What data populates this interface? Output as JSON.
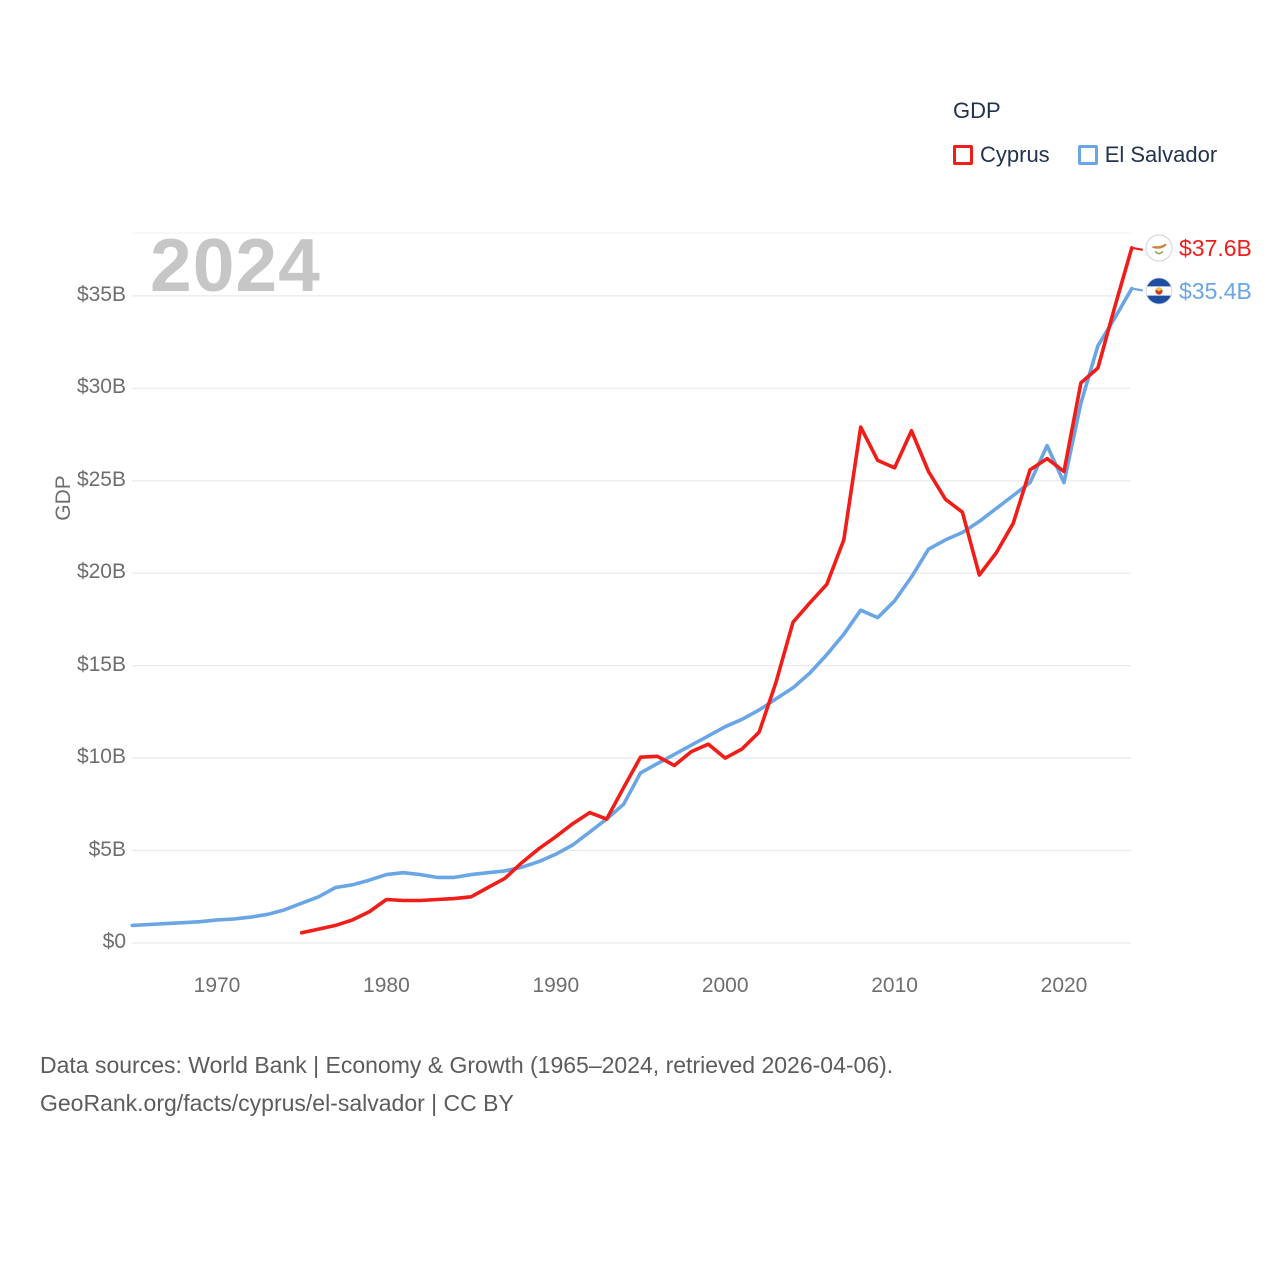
{
  "watermark": "2024",
  "legend": {
    "title": "GDP",
    "items": [
      {
        "label": "Cyprus",
        "color": "#f01d18"
      },
      {
        "label": "El Salvador",
        "color": "#6aa5e6"
      }
    ]
  },
  "end_labels": [
    {
      "series": "Cyprus",
      "value": "$37.6B",
      "color": "#f01d18",
      "flag": "cyprus-flag"
    },
    {
      "series": "El Salvador",
      "value": "$35.4B",
      "color": "#6aa5e6",
      "flag": "el-salvador-flag"
    }
  ],
  "footer": {
    "line1": "Data sources: World Bank | Economy & Growth (1965–2024, retrieved 2026-04-06).",
    "line2": "GeoRank.org/facts/cyprus/el-salvador | CC BY"
  },
  "chart_data": {
    "type": "line",
    "title": "GDP",
    "ylabel": "GDP",
    "xlim": [
      1965,
      2024.3
    ],
    "ylim": [
      0,
      38.5
    ],
    "grid": true,
    "legend_position": "top-right",
    "x_ticks": [
      1970,
      1980,
      1990,
      2000,
      2010,
      2020
    ],
    "y_ticks": [
      "$0",
      "$5B",
      "$10B",
      "$15B",
      "$20B",
      "$25B",
      "$30B",
      "$35B"
    ],
    "y_tick_values": [
      0,
      5,
      10,
      15,
      20,
      25,
      30,
      35
    ],
    "units": "billions USD",
    "series": [
      {
        "name": "Cyprus",
        "color": "#f01d18",
        "start_year": 1975,
        "end_value_label": "$37.6B",
        "values": [
          0.55,
          0.75,
          0.95,
          1.25,
          1.7,
          2.35,
          2.3,
          2.3,
          2.35,
          2.4,
          2.5,
          3.0,
          3.5,
          4.35,
          5.1,
          5.75,
          6.45,
          7.05,
          6.7,
          8.4,
          10.05,
          10.1,
          9.6,
          10.35,
          10.75,
          10.0,
          10.5,
          11.4,
          14.1,
          17.35,
          18.4,
          19.4,
          21.8,
          27.9,
          26.1,
          25.7,
          27.7,
          25.5,
          24.0,
          23.3,
          19.9,
          21.1,
          22.7,
          25.6,
          26.2,
          25.5,
          30.3,
          31.1,
          34.4,
          37.6
        ]
      },
      {
        "name": "El Salvador",
        "color": "#6aa5e6",
        "start_year": 1965,
        "end_value_label": "$35.4B",
        "values": [
          0.95,
          1.0,
          1.05,
          1.1,
          1.15,
          1.25,
          1.3,
          1.4,
          1.55,
          1.8,
          2.15,
          2.5,
          3.0,
          3.15,
          3.4,
          3.7,
          3.8,
          3.7,
          3.55,
          3.55,
          3.7,
          3.8,
          3.9,
          4.1,
          4.4,
          4.8,
          5.3,
          6.0,
          6.7,
          7.5,
          9.2,
          9.7,
          10.2,
          10.7,
          11.2,
          11.7,
          12.1,
          12.6,
          13.2,
          13.8,
          14.6,
          15.6,
          16.7,
          18.0,
          17.6,
          18.5,
          19.8,
          21.3,
          21.8,
          22.2,
          22.8,
          23.5,
          24.2,
          24.9,
          26.9,
          24.9,
          29.2,
          32.3,
          33.8,
          35.4
        ]
      }
    ]
  }
}
